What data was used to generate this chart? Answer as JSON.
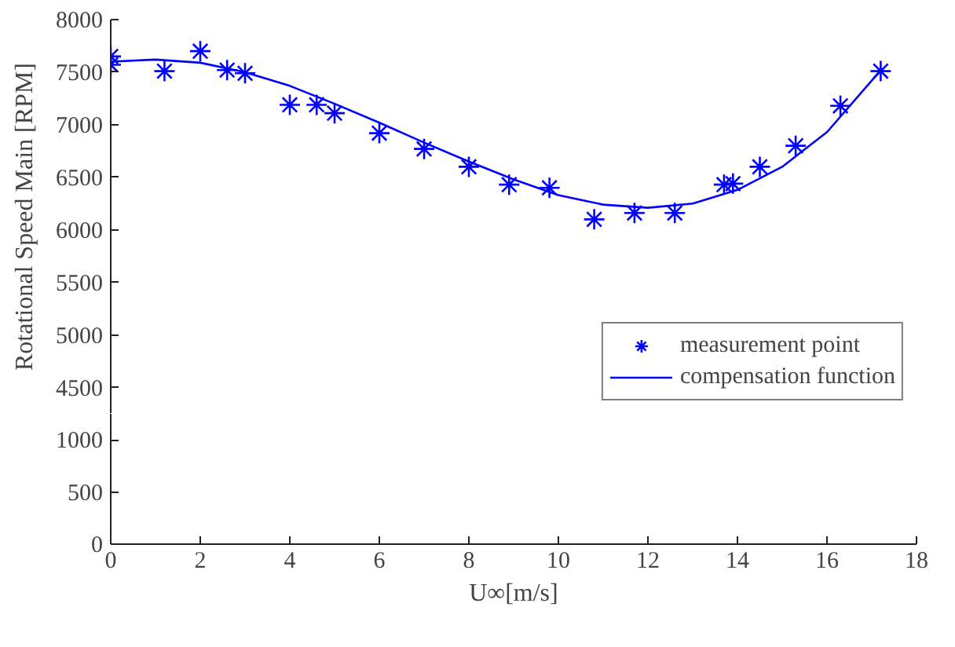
{
  "chart_data": [
    {
      "type": "scatter",
      "ylabel": "Rotational Speed Main [RPM]",
      "xlim": [
        0,
        18
      ],
      "xticks": [
        0,
        2,
        4,
        6,
        8,
        10,
        12,
        14,
        16,
        18
      ],
      "ylim": [
        4250,
        8000
      ],
      "yticks": [
        4500,
        5000,
        5500,
        6000,
        6500,
        7000,
        7500,
        8000
      ],
      "tick_labels": "y",
      "grid": false,
      "legend": "bottom right",
      "series": [
        {
          "name": "measurement point",
          "type": "scatter",
          "marker": "cross",
          "color": "#0000ff",
          "x": [
            0,
            0,
            1.2,
            2,
            2.6,
            3,
            4,
            4.6,
            5,
            6,
            7,
            8,
            8.9,
            9.8,
            10.8,
            11.7,
            12.6,
            13.7,
            13.9,
            14.5,
            15.3,
            16.3,
            17.2
          ],
          "values": [
            7650,
            7570,
            7510,
            7700,
            7520,
            7490,
            7190,
            7190,
            7110,
            6920,
            6770,
            6600,
            6430,
            6400,
            6100,
            6160,
            6160,
            6430,
            6440,
            6600,
            6800,
            7180,
            7510
          ]
        },
        {
          "name": "compensation function",
          "type": "line",
          "marker": "none",
          "color": "#0000ff",
          "x": [
            0,
            1,
            2,
            3,
            4,
            5,
            6,
            7,
            8,
            9,
            10,
            11,
            12,
            13,
            14,
            15,
            16,
            17,
            17.2
          ],
          "values": [
            7600,
            7620,
            7590,
            7500,
            7370,
            7200,
            7020,
            6830,
            6650,
            6480,
            6330,
            6240,
            6210,
            6250,
            6380,
            6600,
            6930,
            7420,
            7520
          ]
        }
      ]
    },
    {
      "type": "scatter",
      "xlabel": "U∞[m/s]",
      "xlim": [
        0,
        18
      ],
      "xticks": [
        0,
        2,
        4,
        6,
        8,
        10,
        12,
        14,
        16,
        18
      ],
      "ylim": [
        0,
        1250
      ],
      "yticks": [
        0,
        500,
        1000
      ],
      "grid": false
    }
  ]
}
